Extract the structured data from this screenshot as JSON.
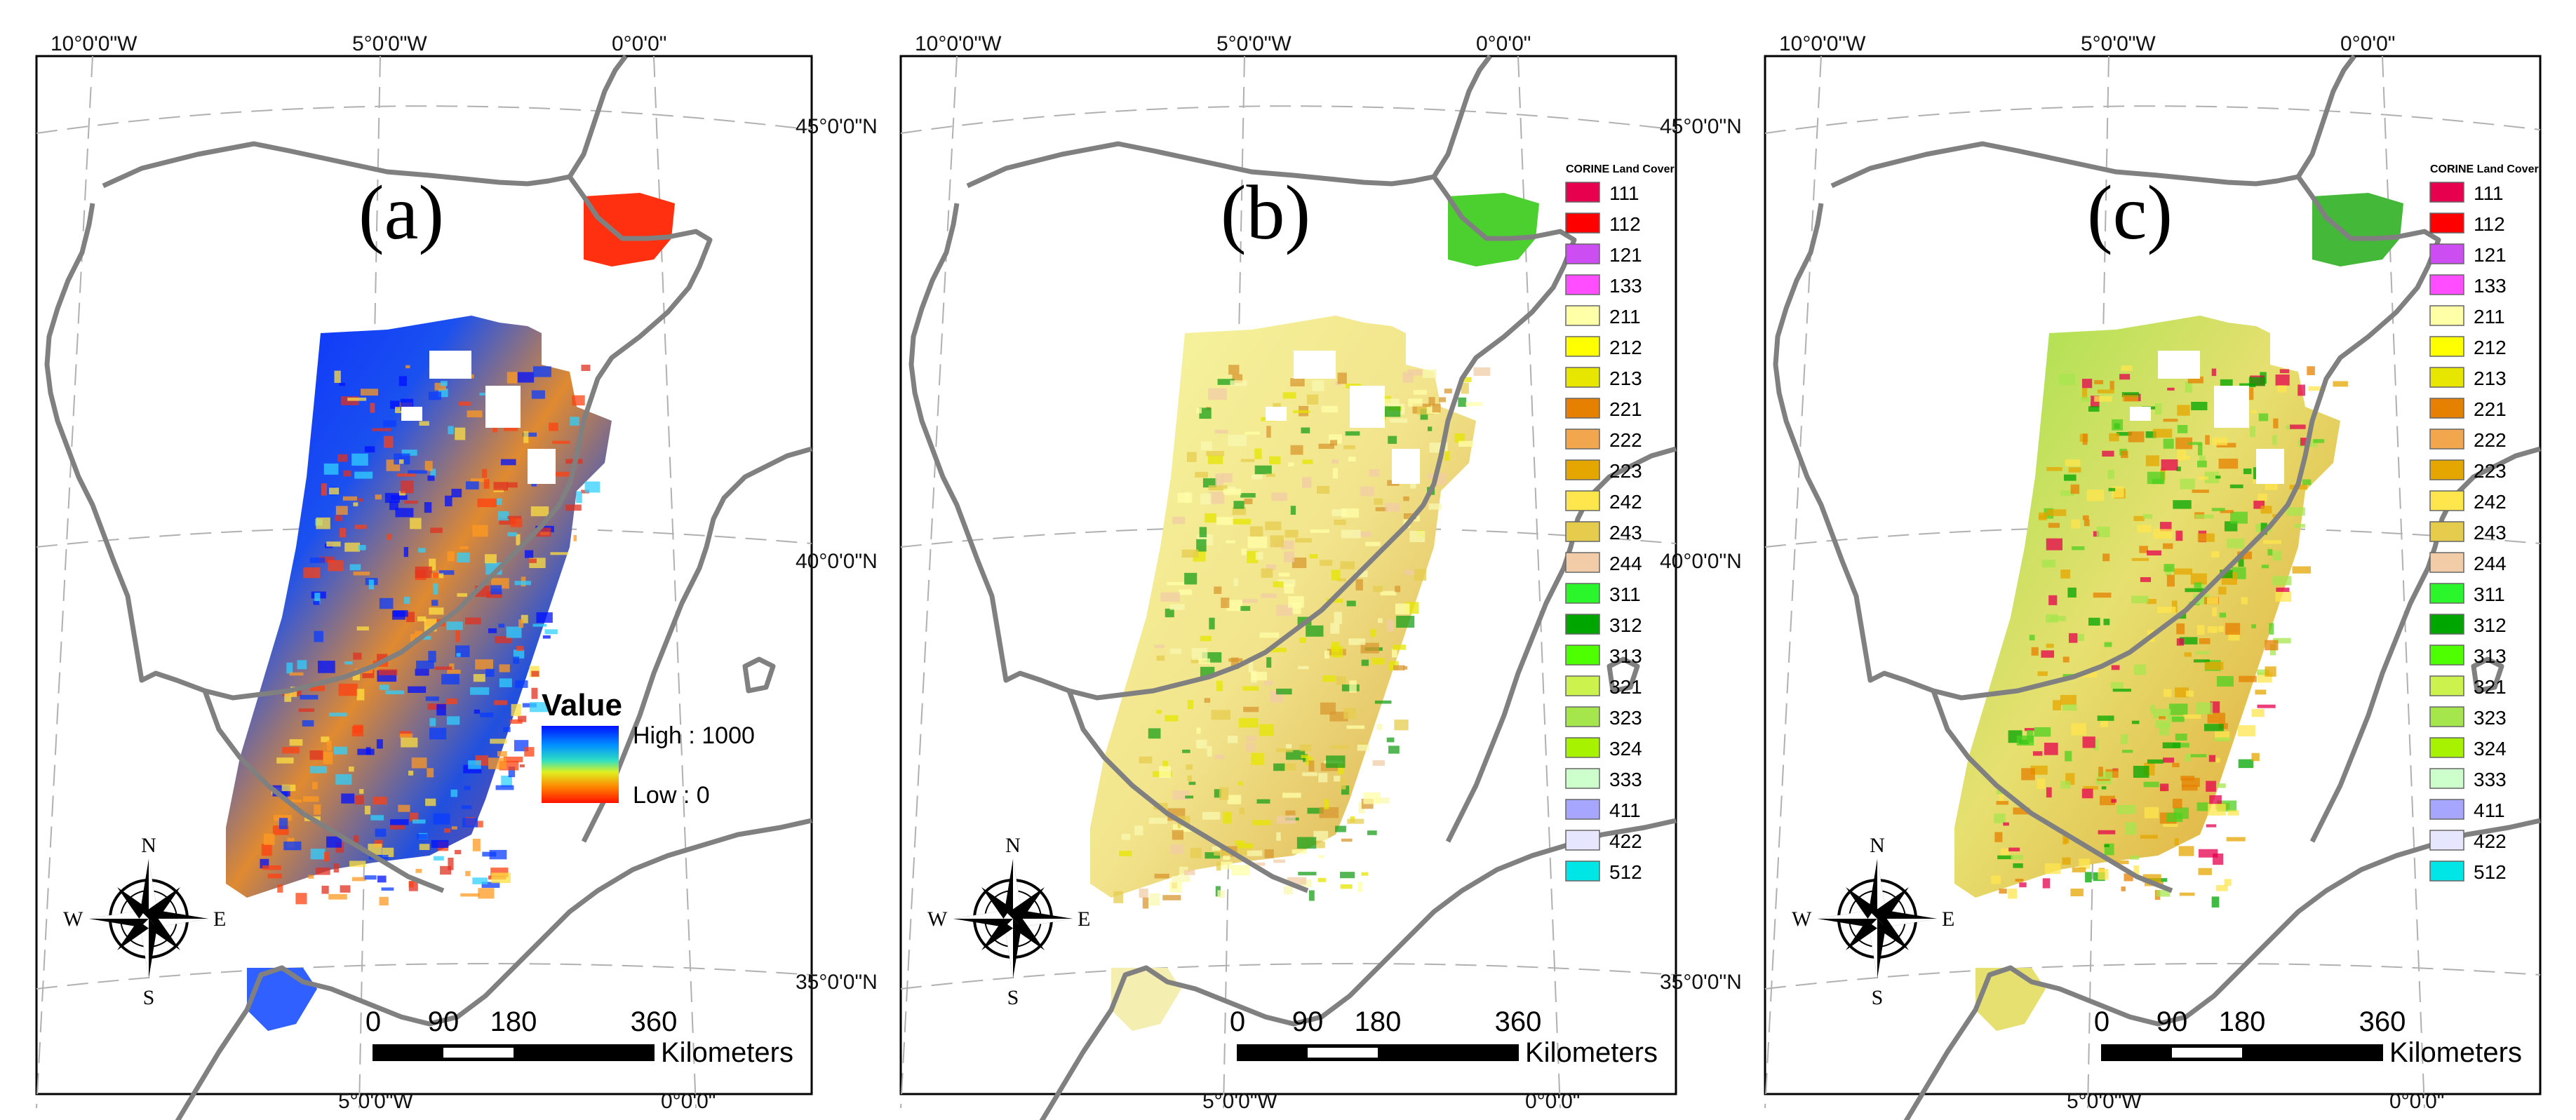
{
  "figure": {
    "panels": [
      {
        "id": "a",
        "label": "(a)",
        "type": "value"
      },
      {
        "id": "b",
        "label": "(b)",
        "type": "landcover"
      },
      {
        "id": "c",
        "label": "(c)",
        "type": "landcover"
      }
    ],
    "graticule": {
      "top_ticks": [
        "10°0'0\"W",
        "5°0'0\"W",
        "0°0'0\""
      ],
      "bottom_ticks": [
        "5°0'0\"W",
        "0°0'0\""
      ],
      "lat_ticks": [
        "45°0'0\"N",
        "40°0'0\"N",
        "35°0'0\"N"
      ]
    },
    "value_legend": {
      "title": "Value",
      "high": "High : 1000",
      "low": "Low : 0"
    },
    "landcover_legend": {
      "title": "CORINE Land Cover",
      "classes": [
        {
          "code": "111",
          "color": "#e6004d"
        },
        {
          "code": "112",
          "color": "#ff0000"
        },
        {
          "code": "121",
          "color": "#cc4df2"
        },
        {
          "code": "133",
          "color": "#ff4dff"
        },
        {
          "code": "211",
          "color": "#ffffa8"
        },
        {
          "code": "212",
          "color": "#ffff00"
        },
        {
          "code": "213",
          "color": "#e6e600"
        },
        {
          "code": "221",
          "color": "#e68000"
        },
        {
          "code": "222",
          "color": "#f2a64d"
        },
        {
          "code": "223",
          "color": "#e6a600"
        },
        {
          "code": "242",
          "color": "#ffe64d"
        },
        {
          "code": "243",
          "color": "#e6cc4d"
        },
        {
          "code": "244",
          "color": "#f2cca6"
        },
        {
          "code": "311",
          "color": "#2bf52b"
        },
        {
          "code": "312",
          "color": "#00a600"
        },
        {
          "code": "313",
          "color": "#4dff00"
        },
        {
          "code": "321",
          "color": "#ccf24d"
        },
        {
          "code": "323",
          "color": "#a6e64d"
        },
        {
          "code": "324",
          "color": "#a6f200"
        },
        {
          "code": "333",
          "color": "#ccffcc"
        },
        {
          "code": "411",
          "color": "#a6a6ff"
        },
        {
          "code": "422",
          "color": "#e6e6ff"
        },
        {
          "code": "512",
          "color": "#00e6e6"
        }
      ]
    },
    "scalebar": {
      "ticks": [
        "0",
        "90",
        "180",
        "360"
      ],
      "unit": "Kilometers"
    },
    "compass": {
      "n": "N",
      "s": "S",
      "e": "E",
      "w": "W"
    },
    "colors": {
      "coast": "#808080",
      "graticule": "#b0b0b0",
      "frame": "#000000"
    }
  }
}
